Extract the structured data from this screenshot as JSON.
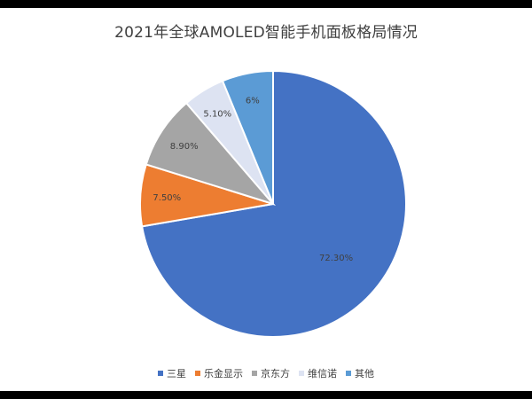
{
  "chart_data": {
    "type": "pie",
    "title": "2021年全球AMOLED智能手机面板格局情况",
    "slices": [
      {
        "label": "三星",
        "value": 72.3,
        "display": "72.30%",
        "color": "#4472C4"
      },
      {
        "label": "乐金显示",
        "value": 7.5,
        "display": "7.50%",
        "color": "#ED7D31"
      },
      {
        "label": "京东方",
        "value": 8.9,
        "display": "8.90%",
        "color": "#A5A5A5"
      },
      {
        "label": "维信诺",
        "value": 5.1,
        "display": "5.10%",
        "color": "#DDE3F2"
      },
      {
        "label": "其他",
        "value": 6.2,
        "display": "6%",
        "color": "#5B9BD5"
      }
    ],
    "legend_position": "bottom"
  }
}
